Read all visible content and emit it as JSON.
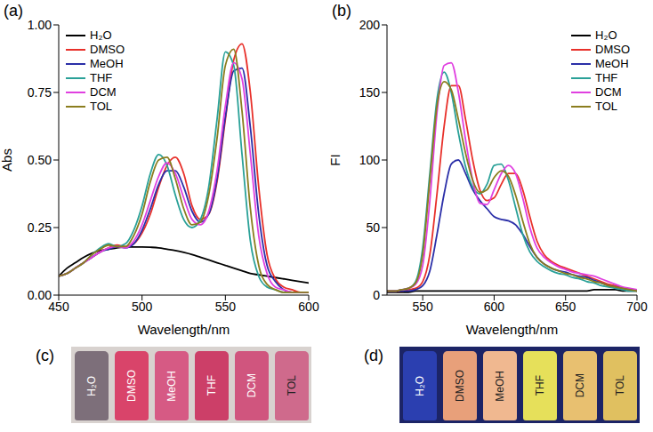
{
  "chart_data": [
    {
      "type": "line",
      "title": "(a)",
      "xlabel": "Wavelength/nm",
      "ylabel": "Abs",
      "x": [
        450,
        455,
        460,
        465,
        470,
        475,
        480,
        485,
        490,
        495,
        500,
        505,
        510,
        515,
        520,
        525,
        530,
        535,
        540,
        545,
        550,
        555,
        560,
        565,
        570,
        575,
        580,
        585,
        590,
        595,
        600
      ],
      "xlim": [
        450,
        600
      ],
      "xticks": [
        450,
        500,
        550,
        600
      ],
      "ylim": [
        0,
        1
      ],
      "yticks": [
        {
          "value": 0,
          "label": "0.00"
        },
        {
          "value": 0.25,
          "label": "0.25"
        },
        {
          "value": 0.5,
          "label": "0.50"
        },
        {
          "value": 0.75,
          "label": "0.75"
        },
        {
          "value": 1,
          "label": "1.00"
        }
      ],
      "legend": "upper left",
      "series": [
        {
          "name": "H₂O",
          "color": "#000000",
          "values": [
            0.07,
            0.1,
            0.12,
            0.14,
            0.155,
            0.165,
            0.17,
            0.175,
            0.178,
            0.178,
            0.178,
            0.177,
            0.175,
            0.17,
            0.165,
            0.158,
            0.15,
            0.14,
            0.13,
            0.12,
            0.11,
            0.1,
            0.09,
            0.08,
            0.075,
            0.07,
            0.065,
            0.06,
            0.055,
            0.05,
            0.045
          ]
        },
        {
          "name": "DMSO",
          "color": "#e8302a",
          "values": [
            0.07,
            0.08,
            0.1,
            0.12,
            0.14,
            0.16,
            0.175,
            0.185,
            0.18,
            0.19,
            0.23,
            0.3,
            0.4,
            0.48,
            0.51,
            0.45,
            0.33,
            0.28,
            0.3,
            0.42,
            0.65,
            0.87,
            0.93,
            0.75,
            0.4,
            0.15,
            0.06,
            0.03,
            0.02,
            0.01,
            0.01
          ]
        },
        {
          "name": "MeOH",
          "color": "#2b2fa8",
          "values": [
            0.07,
            0.08,
            0.1,
            0.12,
            0.14,
            0.16,
            0.17,
            0.18,
            0.175,
            0.19,
            0.24,
            0.32,
            0.41,
            0.46,
            0.46,
            0.4,
            0.31,
            0.27,
            0.3,
            0.43,
            0.66,
            0.83,
            0.84,
            0.62,
            0.3,
            0.11,
            0.05,
            0.02,
            0.01,
            0.01,
            0.01
          ]
        },
        {
          "name": "THF",
          "color": "#2aa198",
          "values": [
            0.07,
            0.08,
            0.1,
            0.12,
            0.15,
            0.175,
            0.19,
            0.18,
            0.19,
            0.24,
            0.33,
            0.45,
            0.52,
            0.48,
            0.37,
            0.28,
            0.25,
            0.28,
            0.4,
            0.65,
            0.9,
            0.85,
            0.52,
            0.2,
            0.07,
            0.03,
            0.02,
            0.01,
            0.01,
            0.01,
            0.01
          ]
        },
        {
          "name": "DCM",
          "color": "#e040e0",
          "values": [
            0.07,
            0.08,
            0.1,
            0.12,
            0.14,
            0.16,
            0.175,
            0.18,
            0.175,
            0.2,
            0.26,
            0.35,
            0.44,
            0.49,
            0.45,
            0.36,
            0.28,
            0.26,
            0.31,
            0.46,
            0.7,
            0.86,
            0.8,
            0.52,
            0.22,
            0.08,
            0.03,
            0.02,
            0.01,
            0.01,
            0.01
          ]
        },
        {
          "name": "TOL",
          "color": "#8b7d1e",
          "values": [
            0.07,
            0.08,
            0.1,
            0.12,
            0.15,
            0.17,
            0.185,
            0.18,
            0.18,
            0.22,
            0.3,
            0.42,
            0.5,
            0.51,
            0.43,
            0.32,
            0.26,
            0.27,
            0.37,
            0.58,
            0.85,
            0.91,
            0.68,
            0.32,
            0.11,
            0.04,
            0.02,
            0.01,
            0.01,
            0.01,
            0.01
          ]
        }
      ]
    },
    {
      "type": "line",
      "title": "(b)",
      "xlabel": "Wavelength/nm",
      "ylabel": "FI",
      "x": [
        525,
        530,
        535,
        540,
        545,
        550,
        555,
        560,
        565,
        570,
        575,
        580,
        585,
        590,
        595,
        600,
        605,
        610,
        615,
        620,
        625,
        630,
        635,
        640,
        645,
        650,
        655,
        660,
        665,
        670,
        675,
        680,
        685,
        690,
        695,
        700
      ],
      "xlim": [
        525,
        700
      ],
      "xticks": [
        550,
        600,
        650,
        700
      ],
      "ylim": [
        0,
        200
      ],
      "yticks": [
        0,
        50,
        100,
        150,
        200
      ],
      "legend": "upper right",
      "series": [
        {
          "name": "H₂O",
          "color": "#000000",
          "values": [
            2,
            2,
            2,
            2,
            3,
            3,
            3,
            3,
            3,
            3,
            3,
            3,
            3,
            3,
            3,
            3,
            3,
            3,
            3,
            3,
            3,
            3,
            3,
            3,
            3,
            3,
            3,
            3,
            3,
            4,
            4,
            4,
            4,
            3,
            3,
            3
          ]
        },
        {
          "name": "DMSO",
          "color": "#e8302a",
          "values": [
            3,
            3,
            3,
            4,
            5,
            10,
            30,
            75,
            125,
            155,
            155,
            130,
            100,
            78,
            70,
            72,
            82,
            90,
            90,
            78,
            58,
            40,
            30,
            25,
            22,
            20,
            18,
            16,
            14,
            12,
            10,
            8,
            7,
            5,
            4,
            3
          ]
        },
        {
          "name": "MeOH",
          "color": "#2b2fa8",
          "values": [
            3,
            3,
            3,
            3,
            4,
            7,
            18,
            45,
            75,
            97,
            100,
            90,
            78,
            70,
            64,
            58,
            56,
            55,
            52,
            45,
            36,
            28,
            23,
            20,
            18,
            17,
            15,
            14,
            13,
            11,
            9,
            7,
            6,
            5,
            4,
            3
          ]
        },
        {
          "name": "THF",
          "color": "#2aa198",
          "values": [
            3,
            3,
            4,
            5,
            10,
            35,
            90,
            145,
            165,
            150,
            120,
            95,
            80,
            75,
            82,
            96,
            97,
            85,
            65,
            45,
            32,
            25,
            21,
            18,
            16,
            15,
            13,
            12,
            10,
            9,
            7,
            6,
            5,
            4,
            3,
            3
          ]
        },
        {
          "name": "DCM",
          "color": "#e040e0",
          "values": [
            3,
            3,
            4,
            5,
            8,
            22,
            70,
            135,
            170,
            172,
            150,
            115,
            85,
            68,
            67,
            78,
            90,
            96,
            90,
            72,
            50,
            35,
            28,
            24,
            21,
            19,
            17,
            16,
            15,
            14,
            12,
            10,
            8,
            6,
            5,
            4
          ]
        },
        {
          "name": "TOL",
          "color": "#8b7d1e",
          "values": [
            3,
            3,
            4,
            5,
            9,
            30,
            85,
            140,
            158,
            152,
            130,
            105,
            85,
            76,
            78,
            87,
            92,
            88,
            74,
            55,
            38,
            28,
            23,
            20,
            18,
            16,
            15,
            13,
            12,
            10,
            9,
            7,
            6,
            5,
            4,
            3
          ]
        }
      ]
    }
  ],
  "photos": [
    {
      "panel": "(c)",
      "background": "#d8d2cf",
      "vials": [
        {
          "label": "H₂O",
          "color": "#7d6f7a"
        },
        {
          "label": "DMSO",
          "color": "#d9446a"
        },
        {
          "label": "MeOH",
          "color": "#d65a84"
        },
        {
          "label": "THF",
          "color": "#cc3f68"
        },
        {
          "label": "DCM",
          "color": "#d0557e"
        },
        {
          "label": "TOL",
          "color": "#cf6a8c"
        }
      ]
    },
    {
      "panel": "(d)",
      "background": "#1c2466",
      "vials": [
        {
          "label": "H₂O",
          "color": "#2b3fb0"
        },
        {
          "label": "DMSO",
          "color": "#e8a07a"
        },
        {
          "label": "MeOH",
          "color": "#f0b890"
        },
        {
          "label": "THF",
          "color": "#e6e05a"
        },
        {
          "label": "DCM",
          "color": "#e8c070"
        },
        {
          "label": "TOL",
          "color": "#e0c060"
        }
      ]
    }
  ]
}
